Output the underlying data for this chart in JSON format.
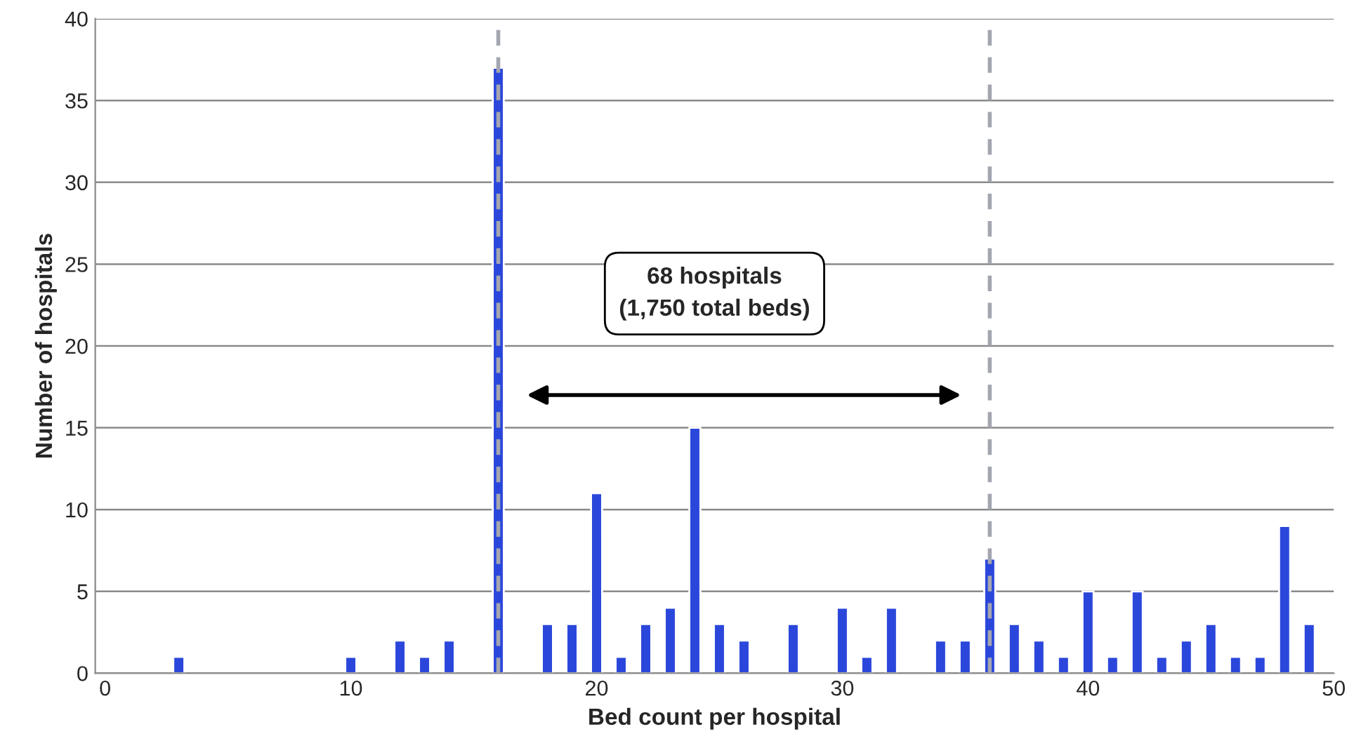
{
  "chart_data": {
    "type": "bar",
    "xlabel": "Bed count per hospital",
    "ylabel": "Number of hospitals",
    "x": [
      3,
      10,
      12,
      13,
      14,
      16,
      18,
      19,
      20,
      21,
      22,
      23,
      24,
      25,
      26,
      28,
      30,
      31,
      32,
      34,
      35,
      36,
      37,
      38,
      39,
      40,
      41,
      42,
      43,
      44,
      45,
      46,
      47,
      48,
      49
    ],
    "values": [
      1,
      1,
      2,
      1,
      2,
      37,
      3,
      3,
      11,
      1,
      3,
      4,
      15,
      3,
      2,
      3,
      4,
      1,
      4,
      2,
      2,
      7,
      3,
      2,
      1,
      5,
      1,
      5,
      1,
      2,
      3,
      1,
      1,
      9,
      3
    ],
    "color": "#2b47db",
    "xlim": [
      -0.4,
      50
    ],
    "xticks": [
      0,
      10,
      20,
      30,
      40,
      50
    ],
    "ylim": [
      0,
      40
    ],
    "yticks": [
      0,
      5,
      10,
      15,
      20,
      25,
      30,
      35,
      40
    ],
    "grid": "y",
    "ref_lines": [
      {
        "axis": "x",
        "value": 16,
        "color": "#a3a6b0",
        "line_style": "dashed"
      },
      {
        "axis": "x",
        "value": 36,
        "color": "#a3a6b0",
        "line_style": "dashed"
      }
    ],
    "annotations": [
      "68 hospitals\n(1,750 total beds)"
    ]
  }
}
